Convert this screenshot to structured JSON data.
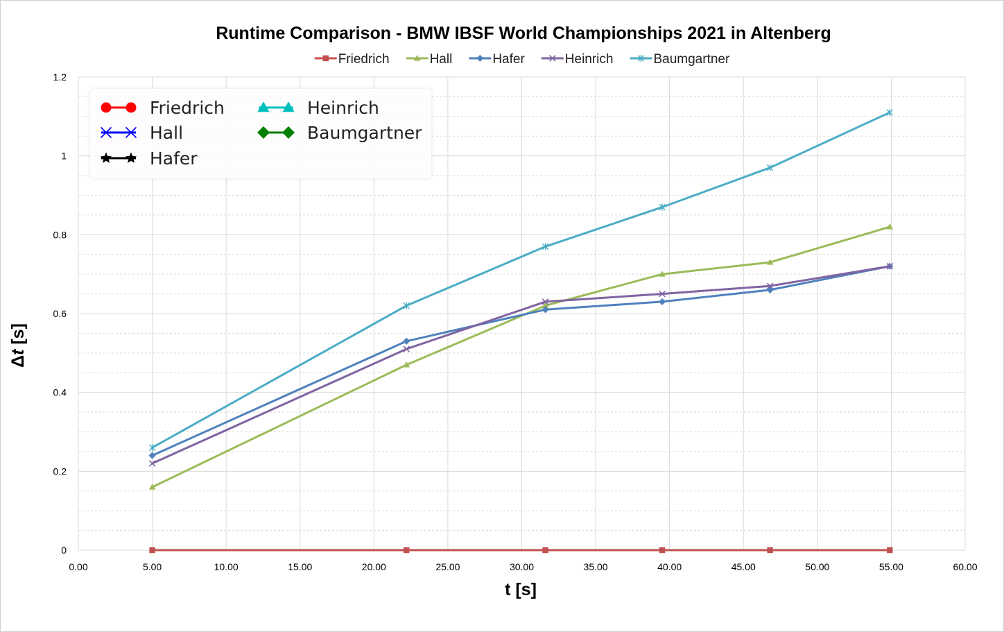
{
  "chart_data": {
    "type": "line",
    "title": "Runtime Comparison - BMW IBSF World Championships 2021 in Altenberg",
    "xlabel": "t [s]",
    "ylabel_prefix": "Δ",
    "ylabel_var": "t",
    "ylabel_suffix": " [s]",
    "xlim": [
      0,
      60
    ],
    "ylim": [
      0,
      1.2
    ],
    "xticks": [
      "0.00",
      "5.00",
      "10.00",
      "15.00",
      "20.00",
      "25.00",
      "30.00",
      "35.00",
      "40.00",
      "45.00",
      "50.00",
      "55.00",
      "60.00"
    ],
    "yticks": [
      "0",
      "0.2",
      "0.4",
      "0.6",
      "0.8",
      "1",
      "1.2"
    ],
    "grid": true,
    "x": [
      5.0,
      22.2,
      31.6,
      39.5,
      46.8,
      54.9
    ],
    "series": [
      {
        "name": "Friedrich",
        "color": "#c0504d",
        "marker": "square",
        "values": [
          0,
          0,
          0,
          0,
          0,
          0
        ]
      },
      {
        "name": "Hall",
        "color": "#9bbb59",
        "marker": "triangle",
        "values": [
          0.16,
          0.47,
          0.62,
          0.7,
          0.73,
          0.82
        ]
      },
      {
        "name": "Hafer",
        "color": "#4f81bd",
        "marker": "diamond",
        "values": [
          0.24,
          0.53,
          0.61,
          0.63,
          0.66,
          0.72
        ]
      },
      {
        "name": "Heinrich",
        "color": "#8064a2",
        "marker": "x",
        "values": [
          0.22,
          0.51,
          0.63,
          0.65,
          0.67,
          0.72
        ]
      },
      {
        "name": "Baumgartner",
        "color": "#4bacc6",
        "marker": "star",
        "values": [
          0.26,
          0.62,
          0.77,
          0.87,
          0.97,
          1.11
        ]
      }
    ],
    "legend_top": {
      "placement": "top-center"
    },
    "legend_inset": {
      "placement": "top-left",
      "entries": [
        {
          "name": "Friedrich",
          "color": "#ff0000",
          "marker": "circle"
        },
        {
          "name": "Hall",
          "color": "#0000ff",
          "marker": "x"
        },
        {
          "name": "Hafer",
          "color": "#000000",
          "marker": "star"
        },
        {
          "name": "Heinrich",
          "color": "#00bfbf",
          "marker": "triangle"
        },
        {
          "name": "Baumgartner",
          "color": "#008000",
          "marker": "diamond"
        }
      ]
    }
  }
}
